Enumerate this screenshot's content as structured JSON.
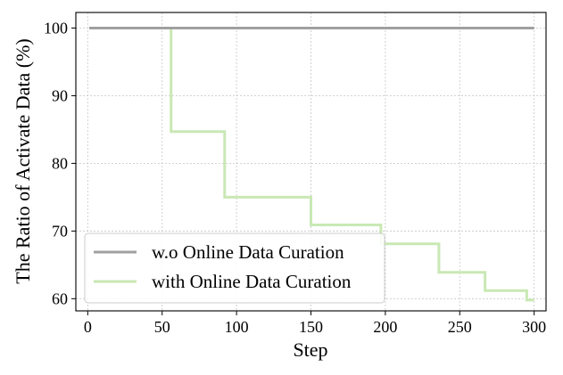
{
  "chart_data": {
    "type": "line",
    "xlabel": "Step",
    "ylabel": "The Ratio of Activate Data (%)",
    "xlim": [
      -8,
      308
    ],
    "ylim": [
      58.2,
      102.3
    ],
    "xticks": [
      0,
      50,
      100,
      150,
      200,
      250,
      300
    ],
    "yticks": [
      60,
      70,
      80,
      90,
      100
    ],
    "grid": true,
    "legend_position": "lower-left",
    "series": [
      {
        "name": "w.o Online Data Curation",
        "color": "#a0a0a0",
        "step": true,
        "x": [
          1,
          300
        ],
        "y": [
          100,
          100
        ]
      },
      {
        "name": "with Online Data Curation",
        "color": "#c9e8b4",
        "step": true,
        "x": [
          1,
          56,
          92,
          150,
          197,
          236,
          267,
          295,
          300
        ],
        "y": [
          100,
          84.7,
          75.0,
          70.9,
          68.1,
          63.9,
          61.2,
          59.8,
          59.8
        ]
      }
    ]
  }
}
